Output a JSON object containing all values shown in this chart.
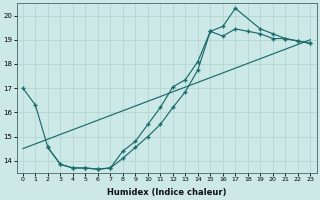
{
  "xlabel": "Humidex (Indice chaleur)",
  "xlim": [
    -0.5,
    23.5
  ],
  "ylim": [
    13.5,
    20.5
  ],
  "yticks": [
    14,
    15,
    16,
    17,
    18,
    19,
    20
  ],
  "xticks": [
    0,
    1,
    2,
    3,
    4,
    5,
    6,
    7,
    8,
    9,
    10,
    11,
    12,
    13,
    14,
    15,
    16,
    17,
    18,
    19,
    20,
    21,
    22,
    23
  ],
  "bg_color": "#cce9e8",
  "grid_color": "#b8d8d6",
  "line_color": "#1a6b6b",
  "curve1": {
    "x": [
      0,
      1,
      2,
      3,
      4,
      5,
      6,
      7,
      8,
      9,
      10,
      11,
      12,
      13,
      14,
      15,
      16,
      17,
      18,
      19,
      20,
      21,
      22,
      23
    ],
    "y": [
      17.0,
      16.3,
      14.55,
      13.85,
      13.7,
      13.7,
      13.65,
      13.7,
      14.1,
      14.55,
      15.0,
      15.5,
      16.2,
      16.85,
      17.75,
      19.35,
      19.15,
      19.45,
      19.35,
      19.25,
      19.05,
      19.05,
      18.95,
      18.85
    ]
  },
  "curve2": {
    "x": [
      2,
      3,
      4,
      5,
      6,
      7,
      8,
      9,
      10,
      11,
      12,
      13,
      14,
      15,
      16,
      17,
      19,
      20,
      21,
      22,
      23
    ],
    "y": [
      14.55,
      13.85,
      13.7,
      13.7,
      13.65,
      13.7,
      14.4,
      14.8,
      15.5,
      16.2,
      17.05,
      17.35,
      18.1,
      19.35,
      19.55,
      20.3,
      19.45,
      19.25,
      19.05,
      18.95,
      18.85
    ]
  },
  "curve3_x": [
    0,
    23
  ],
  "curve3_y": [
    14.5,
    19.0
  ]
}
